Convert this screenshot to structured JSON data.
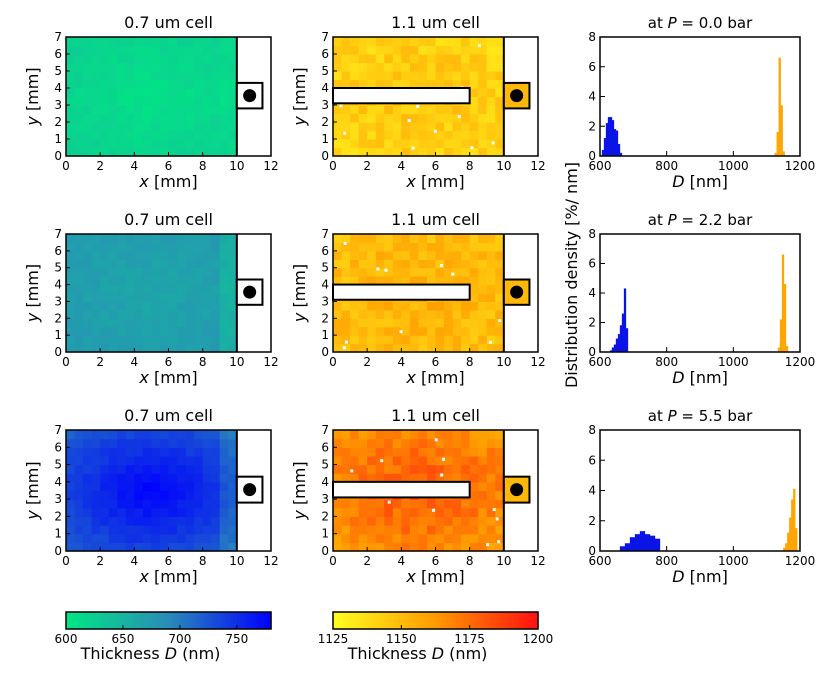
{
  "figure": {
    "shared_ylabel": "Distribution density [%/ nm]",
    "heatmap_titles": [
      "0.7 um cell",
      "1.1 um cell"
    ],
    "heatmap_xlabel": "x [mm]",
    "heatmap_ylabel": "y [mm]",
    "hist_xlabel": "D [nm]",
    "colors": {
      "thin_series": "#0a14e6",
      "thick_series": "#ffa500",
      "frame": "#000000"
    }
  },
  "colorbars": [
    {
      "name": "thin",
      "label": "Thickness D (nm)",
      "ticks": [
        "600",
        "650",
        "700",
        "750"
      ],
      "range": [
        600,
        780
      ],
      "colors": [
        "#00e883",
        "#2a8bb8",
        "#0000ff"
      ]
    },
    {
      "name": "thick",
      "label": "Thickness D (nm)",
      "ticks": [
        "1125",
        "1150",
        "1175",
        "1200"
      ],
      "range": [
        1125,
        1200
      ],
      "colors": [
        "#ffff20",
        "#ff9a00",
        "#ff1010"
      ]
    }
  ],
  "chart_data": [
    {
      "type": "heatmap",
      "row": 1,
      "title": "0.7 um cell",
      "xlabel": "x [mm]",
      "ylabel": "y [mm]",
      "xlim": [
        0,
        12
      ],
      "ylim": [
        0,
        7
      ],
      "xticks": [
        "0",
        "2",
        "4",
        "6",
        "8",
        "10",
        "12"
      ],
      "yticks": [
        "0",
        "1",
        "2",
        "3",
        "4",
        "5",
        "6",
        "7"
      ],
      "mean_thickness_nm": 620
    },
    {
      "type": "heatmap",
      "row": 1,
      "title": "1.1 um cell",
      "xlabel": "x [mm]",
      "ylabel": "y [mm]",
      "xlim": [
        0,
        12
      ],
      "ylim": [
        0,
        7
      ],
      "xticks": [
        "0",
        "2",
        "4",
        "6",
        "8",
        "10",
        "12"
      ],
      "yticks": [
        "0",
        "1",
        "2",
        "3",
        "4",
        "5",
        "6",
        "7"
      ],
      "mean_thickness_nm": 1142
    },
    {
      "type": "bar",
      "row": 1,
      "title": "at P = 0.0 bar",
      "title_parts": [
        "at ",
        "P",
        " =  0.0 bar"
      ],
      "xlabel": "D [nm]",
      "xlim": [
        600,
        1200
      ],
      "ylim": [
        0,
        8
      ],
      "xticks": [
        "600",
        "800",
        "1000",
        "1200"
      ],
      "yticks": [
        "0",
        "2",
        "4",
        "6",
        "8"
      ],
      "series": [
        {
          "name": "0.7 um cell",
          "bin_width": 6,
          "x": [
            606,
            612,
            618,
            624,
            630,
            636,
            642,
            648,
            654,
            660
          ],
          "values": [
            0.4,
            1.2,
            2.2,
            2.6,
            2.6,
            2.4,
            1.8,
            1.7,
            0.8,
            0.2
          ]
        },
        {
          "name": "1.1 um cell",
          "bin_width": 6,
          "x": [
            1124,
            1130,
            1136,
            1142,
            1148
          ],
          "values": [
            0.2,
            1.6,
            6.6,
            3.4,
            0.3
          ]
        }
      ]
    },
    {
      "type": "heatmap",
      "row": 2,
      "title": "0.7 um cell",
      "xlabel": "x [mm]",
      "ylabel": "y [mm]",
      "xlim": [
        0,
        12
      ],
      "ylim": [
        0,
        7
      ],
      "xticks": [
        "0",
        "2",
        "4",
        "6",
        "8",
        "10",
        "12"
      ],
      "yticks": [
        "0",
        "1",
        "2",
        "3",
        "4",
        "5",
        "6",
        "7"
      ],
      "mean_thickness_nm": 672
    },
    {
      "type": "heatmap",
      "row": 2,
      "title": "1.1 um cell",
      "xlabel": "x [mm]",
      "ylabel": "y [mm]",
      "xlim": [
        0,
        12
      ],
      "ylim": [
        0,
        7
      ],
      "xticks": [
        "0",
        "2",
        "4",
        "6",
        "8",
        "10",
        "12"
      ],
      "yticks": [
        "0",
        "1",
        "2",
        "3",
        "4",
        "5",
        "6",
        "7"
      ],
      "mean_thickness_nm": 1150
    },
    {
      "type": "bar",
      "row": 2,
      "title": "at P = 2.2 bar",
      "title_parts": [
        "at ",
        "P",
        " =  2.2 bar"
      ],
      "xlabel": "D [nm]",
      "xlim": [
        600,
        1200
      ],
      "ylim": [
        0,
        8
      ],
      "xticks": [
        "600",
        "800",
        "1000",
        "1200"
      ],
      "yticks": [
        "0",
        "2",
        "4",
        "6",
        "8"
      ],
      "series": [
        {
          "name": "0.7 um cell",
          "bin_width": 6,
          "x": [
            630,
            636,
            642,
            648,
            654,
            660,
            666,
            672,
            678
          ],
          "values": [
            0.1,
            0.3,
            0.5,
            0.9,
            1.2,
            1.8,
            2.6,
            4.3,
            1.6
          ]
        },
        {
          "name": "1.1 um cell",
          "bin_width": 6,
          "x": [
            1134,
            1140,
            1146,
            1152,
            1158
          ],
          "values": [
            0.3,
            2.2,
            6.6,
            4.6,
            0.4
          ]
        }
      ]
    },
    {
      "type": "heatmap",
      "row": 3,
      "title": "0.7 um cell",
      "xlabel": "x [mm]",
      "ylabel": "y [mm]",
      "xlim": [
        0,
        12
      ],
      "ylim": [
        0,
        7
      ],
      "xticks": [
        "0",
        "2",
        "4",
        "6",
        "8",
        "10",
        "12"
      ],
      "yticks": [
        "0",
        "1",
        "2",
        "3",
        "4",
        "5",
        "6",
        "7"
      ],
      "mean_thickness_nm": 735
    },
    {
      "type": "heatmap",
      "row": 3,
      "title": "1.1 um cell",
      "xlabel": "x [mm]",
      "ylabel": "y [mm]",
      "xlim": [
        0,
        12
      ],
      "ylim": [
        0,
        7
      ],
      "xticks": [
        "0",
        "2",
        "4",
        "6",
        "8",
        "10",
        "12"
      ],
      "yticks": [
        "0",
        "1",
        "2",
        "3",
        "4",
        "5",
        "6",
        "7"
      ],
      "mean_thickness_nm": 1168
    },
    {
      "type": "bar",
      "row": 3,
      "title": "at P = 5.5 bar",
      "title_parts": [
        "at ",
        "P",
        " =  5.5 bar"
      ],
      "xlabel": "D [nm]",
      "xlim": [
        600,
        1200
      ],
      "ylim": [
        0,
        8
      ],
      "xticks": [
        "600",
        "800",
        "1000",
        "1200"
      ],
      "yticks": [
        "0",
        "2",
        "4",
        "6",
        "8"
      ],
      "series": [
        {
          "name": "0.7 um cell",
          "bin_width": 15,
          "x": [
            660,
            675,
            690,
            705,
            720,
            735,
            750,
            765
          ],
          "values": [
            0.3,
            0.5,
            0.9,
            1.1,
            1.3,
            1.1,
            1.0,
            0.8
          ]
        },
        {
          "name": "1.1 um cell",
          "bin_width": 6,
          "x": [
            1150,
            1156,
            1162,
            1168,
            1174,
            1180,
            1186
          ],
          "values": [
            0.2,
            0.5,
            1.2,
            2.2,
            3.4,
            4.1,
            1.5
          ]
        }
      ]
    }
  ]
}
